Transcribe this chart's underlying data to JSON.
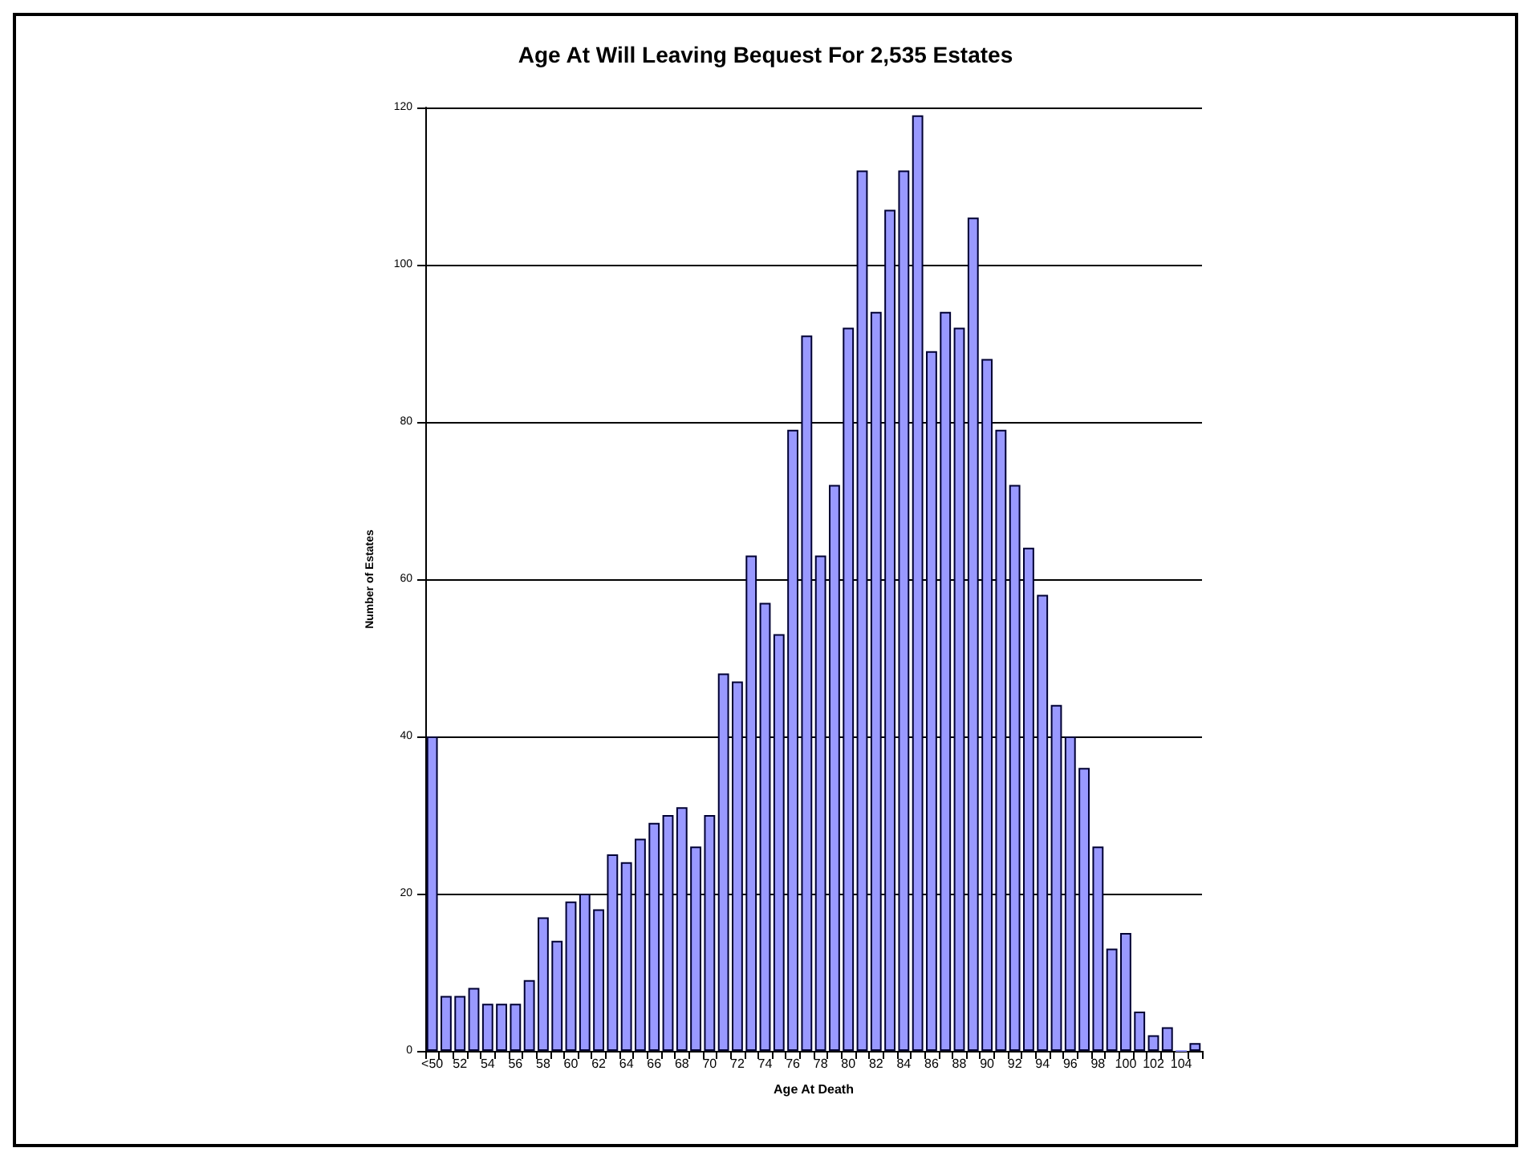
{
  "chart_data": {
    "type": "bar",
    "title": "Age At Will Leaving Bequest For 2,535 Estates",
    "xlabel": "Age At Death",
    "ylabel": "Number of Estates",
    "categories": [
      "<50",
      null,
      "52",
      null,
      "54",
      null,
      "56",
      null,
      "58",
      null,
      "60",
      null,
      "62",
      null,
      "64",
      null,
      "66",
      null,
      "68",
      null,
      "70",
      null,
      "72",
      null,
      "74",
      null,
      "76",
      null,
      "78",
      null,
      "80",
      null,
      "82",
      null,
      "84",
      null,
      "86",
      null,
      "88",
      null,
      "90",
      null,
      "92",
      null,
      "94",
      null,
      "96",
      null,
      "98",
      null,
      "100",
      null,
      "102",
      null,
      "104",
      null
    ],
    "values": [
      40,
      7,
      7,
      8,
      6,
      6,
      6,
      9,
      17,
      14,
      19,
      20,
      18,
      25,
      24,
      27,
      29,
      30,
      31,
      26,
      30,
      48,
      47,
      63,
      57,
      53,
      79,
      91,
      63,
      72,
      92,
      112,
      94,
      107,
      112,
      119,
      89,
      94,
      92,
      106,
      88,
      79,
      72,
      64,
      58,
      44,
      40,
      36,
      26,
      13,
      15,
      5,
      2,
      3,
      0,
      1
    ],
    "color": "#9999ff",
    "ylim": [
      0,
      120
    ],
    "yticks": [
      0,
      20,
      40,
      60,
      80,
      100,
      120
    ],
    "grid": "y"
  }
}
